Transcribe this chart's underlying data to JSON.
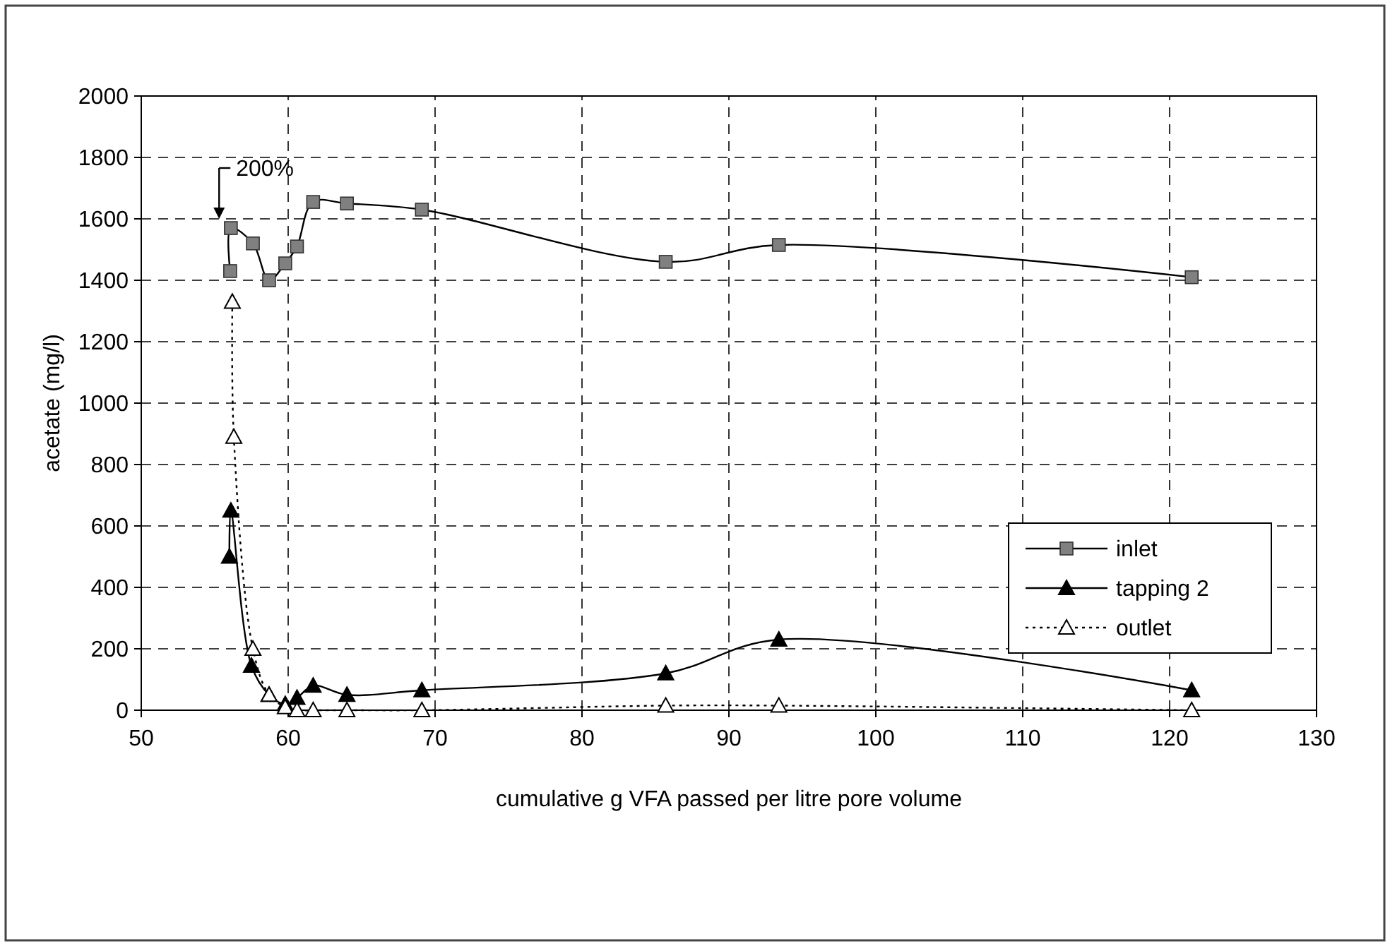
{
  "chart_data": {
    "type": "line",
    "xlabel": "cumulative g VFA passed per litre pore volume",
    "ylabel": "acetate (mg/l)",
    "xlim": [
      50,
      130
    ],
    "ylim": [
      0,
      2000
    ],
    "xticks": [
      50,
      60,
      70,
      80,
      90,
      100,
      110,
      120,
      130
    ],
    "yticks": [
      0,
      200,
      400,
      600,
      800,
      1000,
      1200,
      1400,
      1600,
      1800,
      2000
    ],
    "grid": true,
    "legend": "right",
    "annotations": [
      {
        "text": "200%",
        "x": 55.3,
        "y": 1600
      }
    ],
    "series": [
      {
        "name": "inlet",
        "color": "#808080",
        "marker": "square",
        "line_style": "solid",
        "x": [
          56.05,
          56.1,
          57.6,
          58.7,
          59.8,
          60.6,
          61.7,
          64.0,
          69.1,
          85.7,
          93.4,
          121.5
        ],
        "values": [
          1430,
          1570,
          1520,
          1400,
          1455,
          1510,
          1655,
          1650,
          1630,
          1460,
          1515,
          1410
        ]
      },
      {
        "name": "tapping 2",
        "color": "#000000",
        "marker": "triangle",
        "line_style": "solid",
        "x": [
          56.0,
          56.1,
          57.5,
          58.7,
          59.8,
          60.6,
          61.7,
          64.0,
          69.1,
          85.7,
          93.4,
          121.5
        ],
        "values": [
          500,
          650,
          145,
          50,
          20,
          40,
          80,
          50,
          65,
          120,
          230,
          65
        ]
      },
      {
        "name": "outlet",
        "color": "#000000",
        "marker": "triangle-open",
        "line_style": "dotted",
        "x": [
          56.2,
          56.3,
          57.6,
          58.7,
          59.8,
          60.6,
          61.7,
          64.0,
          69.1,
          85.7,
          93.4,
          121.5
        ],
        "values": [
          1330,
          890,
          200,
          50,
          10,
          0,
          0,
          0,
          0,
          15,
          15,
          0
        ]
      }
    ]
  }
}
